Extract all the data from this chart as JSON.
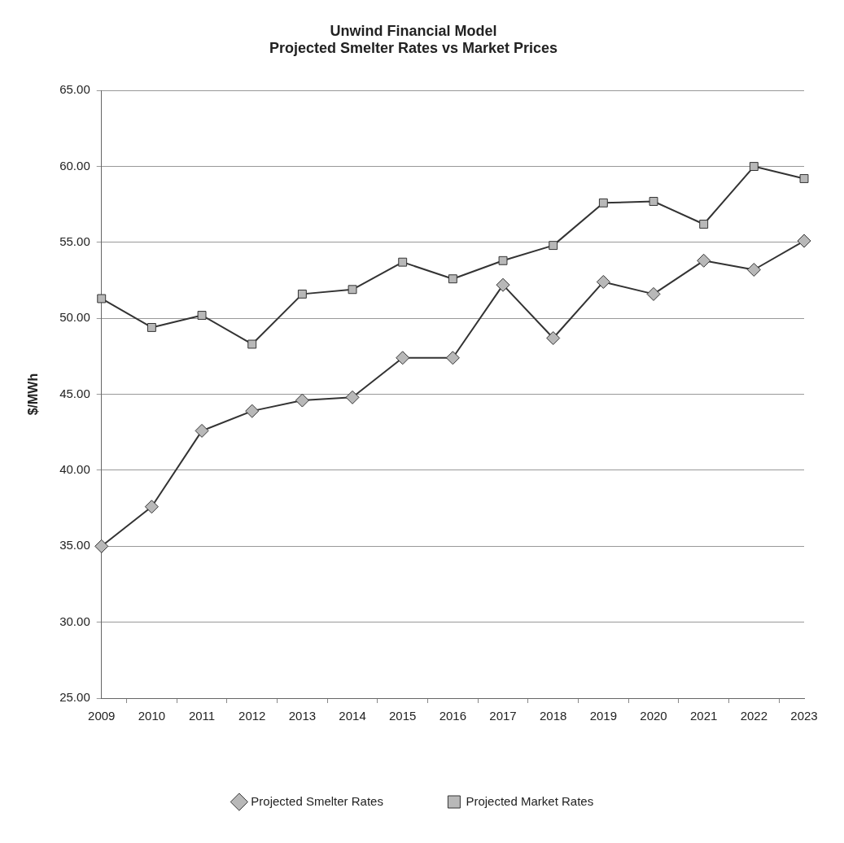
{
  "chart_data": {
    "type": "line",
    "title": [
      "Unwind Financial Model",
      "Projected Smelter Rates vs Market Prices"
    ],
    "ylabel": "$/MWh",
    "categories": [
      "2009",
      "2010",
      "2011",
      "2012",
      "2013",
      "2014",
      "2015",
      "2016",
      "2017",
      "2018",
      "2019",
      "2020",
      "2021",
      "2022",
      "2023"
    ],
    "series": [
      {
        "name": "Projected Smelter Rates",
        "color": "#333333",
        "marker": "diamond",
        "values": [
          35.0,
          37.6,
          42.6,
          43.9,
          44.6,
          44.8,
          47.4,
          47.4,
          52.2,
          48.7,
          52.4,
          51.6,
          53.8,
          53.2,
          55.1
        ]
      },
      {
        "name": "Projected Market Rates",
        "color": "#333333",
        "marker": "square",
        "values": [
          51.3,
          49.4,
          50.2,
          48.3,
          51.6,
          51.9,
          53.7,
          52.6,
          53.8,
          54.8,
          57.6,
          57.7,
          56.2,
          60.0,
          59.2
        ]
      }
    ],
    "ylim": [
      25,
      65
    ],
    "yticks": [
      {
        "value": 25,
        "label": "25.00"
      },
      {
        "value": 30,
        "label": "30.00"
      },
      {
        "value": 35,
        "label": "35.00"
      },
      {
        "value": 40,
        "label": "40.00"
      },
      {
        "value": 45,
        "label": "45.00"
      },
      {
        "value": 50,
        "label": "50.00"
      },
      {
        "value": 55,
        "label": "55.00"
      },
      {
        "value": 60,
        "label": "60.00"
      },
      {
        "value": 65,
        "label": "65.00"
      }
    ],
    "grid": "y",
    "legend": "bottom",
    "line_style": "solid"
  }
}
